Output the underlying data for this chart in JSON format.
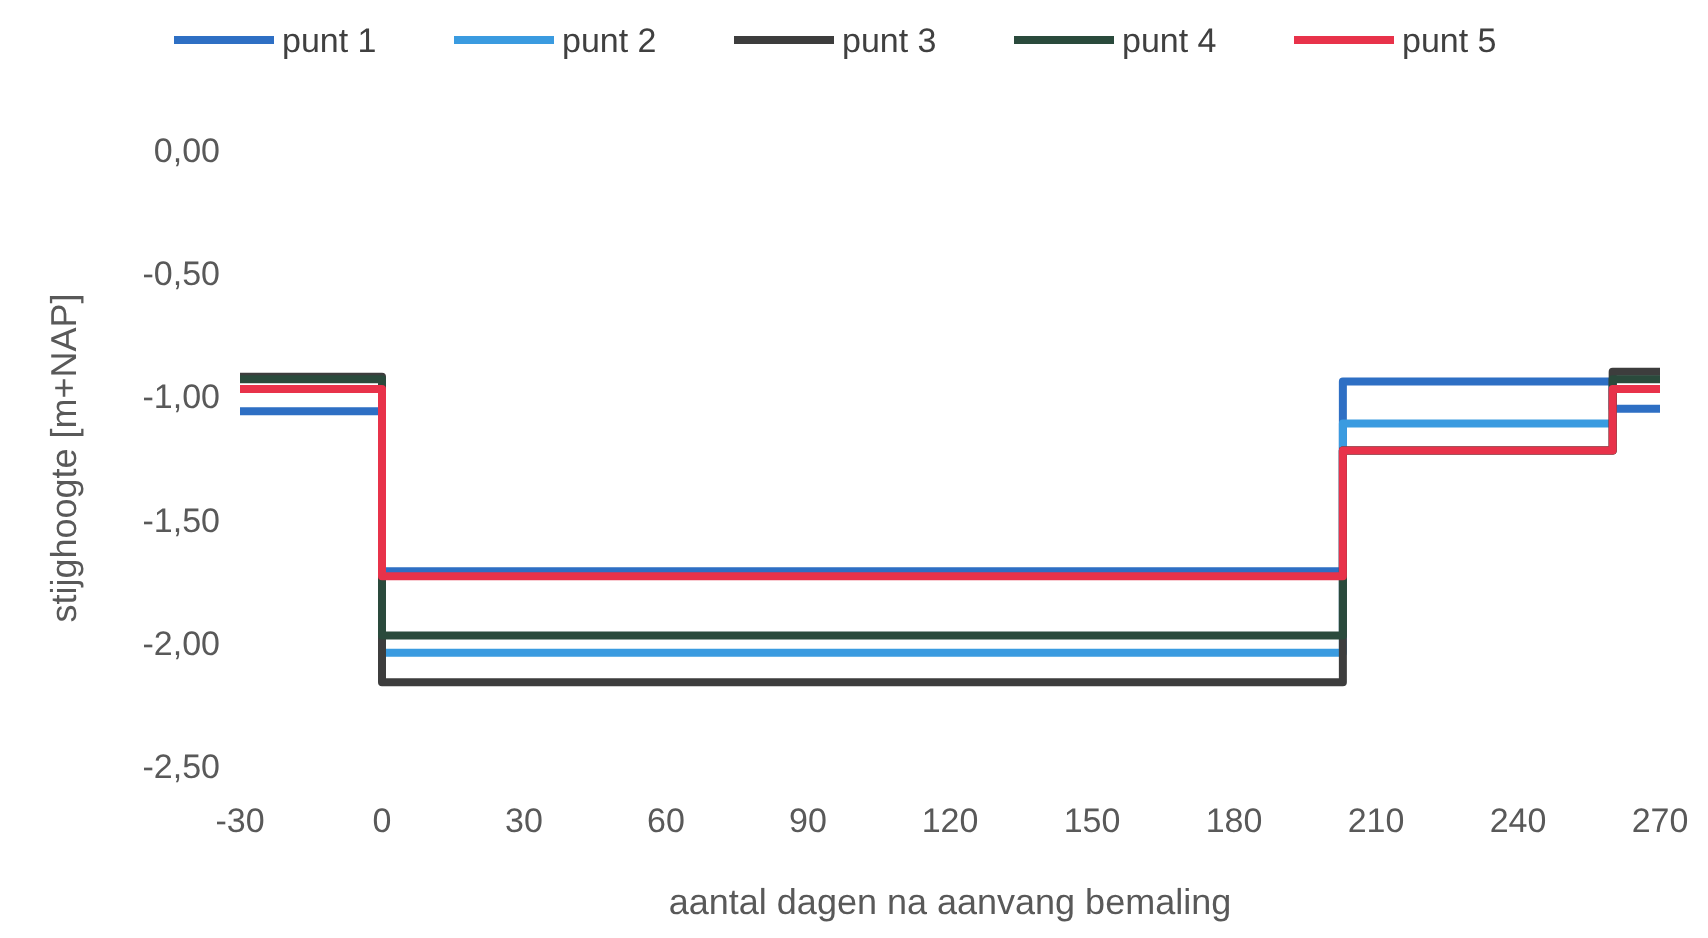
{
  "chart_data": {
    "type": "step",
    "xlabel": "aantal dagen na aanvang bemaling",
    "ylabel": "stijghoogte [m+NAP]",
    "x": [
      -30,
      0,
      203,
      260,
      270
    ],
    "series": [
      {
        "name": "punt 1",
        "color": "#2e6fc4",
        "values": [
          -1.06,
          -1.71,
          -0.94,
          -1.05,
          -1.05
        ]
      },
      {
        "name": "punt 2",
        "color": "#3a9be0",
        "x": [
          0,
          203,
          260
        ],
        "values": [
          -2.04,
          -1.11,
          -1.11
        ]
      },
      {
        "name": "punt 3",
        "color": "#3d3d3d",
        "values": [
          -0.92,
          -2.16,
          -1.22,
          -0.9,
          -0.9
        ]
      },
      {
        "name": "punt 4",
        "color": "#2a4a3c",
        "values": [
          -0.93,
          -1.97,
          -1.22,
          -0.93,
          -0.93
        ]
      },
      {
        "name": "punt 5",
        "color": "#e8324a",
        "values": [
          -0.97,
          -1.73,
          -1.22,
          -0.97,
          -0.97
        ]
      }
    ],
    "xlim": [
      -30,
      270
    ],
    "xticks": [
      -30,
      0,
      30,
      60,
      90,
      120,
      150,
      180,
      210,
      240,
      270
    ],
    "ylim": [
      -2.5,
      0
    ],
    "yticks": [
      {
        "value": 0,
        "label": "0,00"
      },
      {
        "value": -0.5,
        "label": "-0,50"
      },
      {
        "value": -1,
        "label": "-1,00"
      },
      {
        "value": -1.5,
        "label": "-1,50"
      },
      {
        "value": -2,
        "label": "-2,00"
      },
      {
        "value": -2.5,
        "label": "-2,50"
      }
    ],
    "grid": false,
    "legend": "top",
    "line_style": "solid"
  }
}
